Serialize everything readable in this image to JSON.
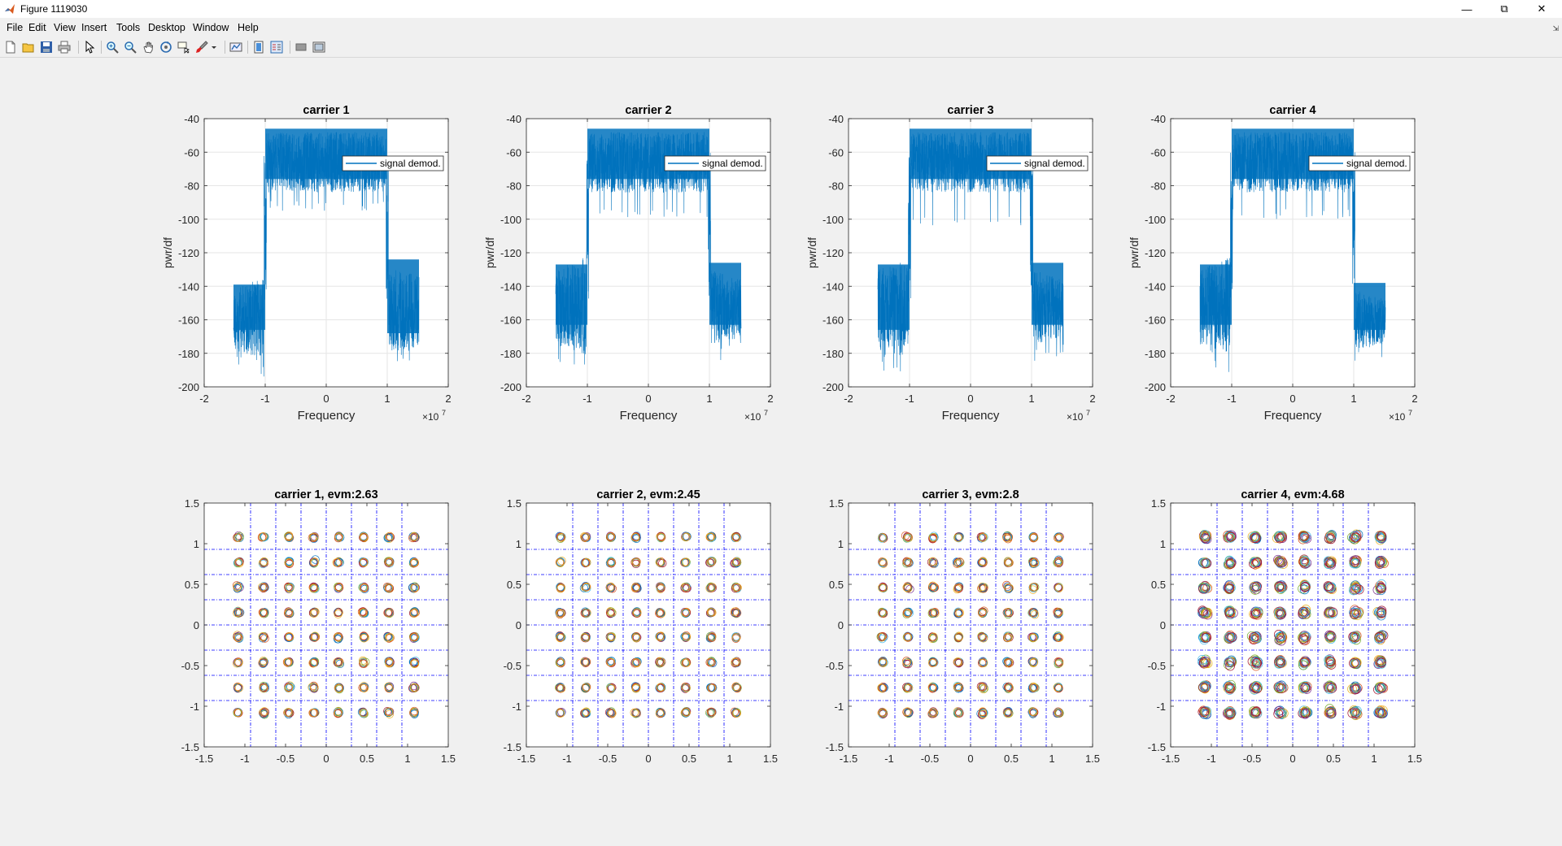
{
  "window": {
    "title": "Figure 1119030"
  },
  "menu": [
    "File",
    "Edit",
    "View",
    "Insert",
    "Tools",
    "Desktop",
    "Window",
    "Help"
  ],
  "toolbar_icons": [
    "new-figure-icon",
    "open-file-icon",
    "save-icon",
    "print-icon",
    "select-arrow-icon",
    "zoom-in-icon",
    "zoom-out-icon",
    "pan-icon",
    "rotate-3d-icon",
    "data-cursor-icon",
    "brush-icon",
    "brush-dropdown-icon",
    "link-plot-icon",
    "colorbar-icon",
    "legend-icon",
    "hide-plot-tools-icon",
    "show-plot-tools-icon"
  ],
  "colors": {
    "trace": "#0072bd",
    "grid_line": "#0000ff"
  },
  "legend_label": "signal demod.",
  "chart_data": [
    {
      "type": "line",
      "title": "carrier 1",
      "xlabel": "Frequency",
      "ylabel": "pwr/df",
      "xlim": [
        -2,
        2
      ],
      "ylim": [
        -200,
        -40
      ],
      "xticks": [
        "-2",
        "-1",
        "0",
        "1",
        "2"
      ],
      "yticks": [
        "-40",
        "-60",
        "-80",
        "-100",
        "-120",
        "-140",
        "-160",
        "-180",
        "-200"
      ],
      "x_exponent_label": "×10",
      "x_exponent": "7",
      "legend": "signal demod.",
      "band": {
        "x": [
          -1.52,
          -1.0,
          1.0,
          1.52
        ],
        "center_top": -48,
        "center_floor": -84,
        "center_min": -95,
        "left_top": -142,
        "left_floor": -178,
        "right_top": -128,
        "right_floor": -180
      }
    },
    {
      "type": "line",
      "title": "carrier 2",
      "xlabel": "Frequency",
      "ylabel": "pwr/df",
      "xlim": [
        -2,
        2
      ],
      "ylim": [
        -200,
        -40
      ],
      "xticks": [
        "-2",
        "-1",
        "0",
        "1",
        "2"
      ],
      "yticks": [
        "-40",
        "-60",
        "-80",
        "-100",
        "-120",
        "-140",
        "-160",
        "-180",
        "-200"
      ],
      "x_exponent_label": "×10",
      "x_exponent": "7",
      "legend": "signal demod.",
      "band": {
        "x": [
          -1.52,
          -1.0,
          1.0,
          1.52
        ],
        "center_top": -48,
        "center_floor": -84,
        "center_min": -100,
        "left_top": -130,
        "left_floor": -175,
        "right_top": -130,
        "right_floor": -175
      }
    },
    {
      "type": "line",
      "title": "carrier 3",
      "xlabel": "Frequency",
      "ylabel": "pwr/df",
      "xlim": [
        -2,
        2
      ],
      "ylim": [
        -200,
        -40
      ],
      "xticks": [
        "-2",
        "-1",
        "0",
        "1",
        "2"
      ],
      "yticks": [
        "-40",
        "-60",
        "-80",
        "-100",
        "-120",
        "-140",
        "-160",
        "-180",
        "-200"
      ],
      "x_exponent_label": "×10",
      "x_exponent": "7",
      "legend": "signal demod.",
      "band": {
        "x": [
          -1.52,
          -1.0,
          1.0,
          1.52
        ],
        "center_top": -48,
        "center_floor": -84,
        "center_min": -104,
        "left_top": -130,
        "left_floor": -178,
        "right_top": -130,
        "right_floor": -175
      }
    },
    {
      "type": "line",
      "title": "carrier 4",
      "xlabel": "Frequency",
      "ylabel": "pwr/df",
      "xlim": [
        -2,
        2
      ],
      "ylim": [
        -200,
        -40
      ],
      "xticks": [
        "-2",
        "-1",
        "0",
        "1",
        "2"
      ],
      "yticks": [
        "-40",
        "-60",
        "-80",
        "-100",
        "-120",
        "-140",
        "-160",
        "-180",
        "-200"
      ],
      "x_exponent_label": "×10",
      "x_exponent": "7",
      "legend": "signal demod.",
      "band": {
        "x": [
          -1.52,
          -1.0,
          1.0,
          1.52
        ],
        "center_top": -48,
        "center_floor": -84,
        "center_min": -100,
        "left_top": -130,
        "left_floor": -175,
        "right_top": -142,
        "right_floor": -178
      }
    },
    {
      "type": "scatter",
      "title": "carrier 1, evm:2.63",
      "xlim": [
        -1.5,
        1.5
      ],
      "ylim": [
        -1.5,
        1.5
      ],
      "xticks": [
        "-1.5",
        "-1",
        "-0.5",
        "0",
        "0.5",
        "1",
        "1.5"
      ],
      "yticks": [
        "1.5",
        "1",
        "0.5",
        "0",
        "-0.5",
        "-1",
        "-1.5"
      ],
      "constellation_levels": [
        -1.08,
        -0.77,
        -0.46,
        -0.15,
        0.15,
        0.46,
        0.77,
        1.08
      ],
      "decision_lines": [
        -0.93,
        -0.62,
        -0.31,
        0,
        0.31,
        0.62,
        0.93
      ],
      "evm": 2.63
    },
    {
      "type": "scatter",
      "title": "carrier 2, evm:2.45",
      "xlim": [
        -1.5,
        1.5
      ],
      "ylim": [
        -1.5,
        1.5
      ],
      "xticks": [
        "-1.5",
        "-1",
        "-0.5",
        "0",
        "0.5",
        "1",
        "1.5"
      ],
      "yticks": [
        "1.5",
        "1",
        "0.5",
        "0",
        "-0.5",
        "-1",
        "-1.5"
      ],
      "constellation_levels": [
        -1.08,
        -0.77,
        -0.46,
        -0.15,
        0.15,
        0.46,
        0.77,
        1.08
      ],
      "decision_lines": [
        -0.93,
        -0.62,
        -0.31,
        0,
        0.31,
        0.62,
        0.93
      ],
      "evm": 2.45
    },
    {
      "type": "scatter",
      "title": "carrier 3, evm:2.8",
      "xlim": [
        -1.5,
        1.5
      ],
      "ylim": [
        -1.5,
        1.5
      ],
      "xticks": [
        "-1.5",
        "-1",
        "-0.5",
        "0",
        "0.5",
        "1",
        "1.5"
      ],
      "yticks": [
        "1.5",
        "1",
        "0.5",
        "0",
        "-0.5",
        "-1",
        "-1.5"
      ],
      "constellation_levels": [
        -1.08,
        -0.77,
        -0.46,
        -0.15,
        0.15,
        0.46,
        0.77,
        1.08
      ],
      "decision_lines": [
        -0.93,
        -0.62,
        -0.31,
        0,
        0.31,
        0.62,
        0.93
      ],
      "evm": 2.8
    },
    {
      "type": "scatter",
      "title": "carrier 4, evm:4.68",
      "xlim": [
        -1.5,
        1.5
      ],
      "ylim": [
        -1.5,
        1.5
      ],
      "xticks": [
        "-1.5",
        "-1",
        "-0.5",
        "0",
        "0.5",
        "1",
        "1.5"
      ],
      "yticks": [
        "1.5",
        "1",
        "0.5",
        "0",
        "-0.5",
        "-1",
        "-1.5"
      ],
      "constellation_levels": [
        -1.08,
        -0.77,
        -0.46,
        -0.15,
        0.15,
        0.46,
        0.77,
        1.08
      ],
      "decision_lines": [
        -0.93,
        -0.62,
        -0.31,
        0,
        0.31,
        0.62,
        0.93
      ],
      "evm": 4.68
    }
  ]
}
